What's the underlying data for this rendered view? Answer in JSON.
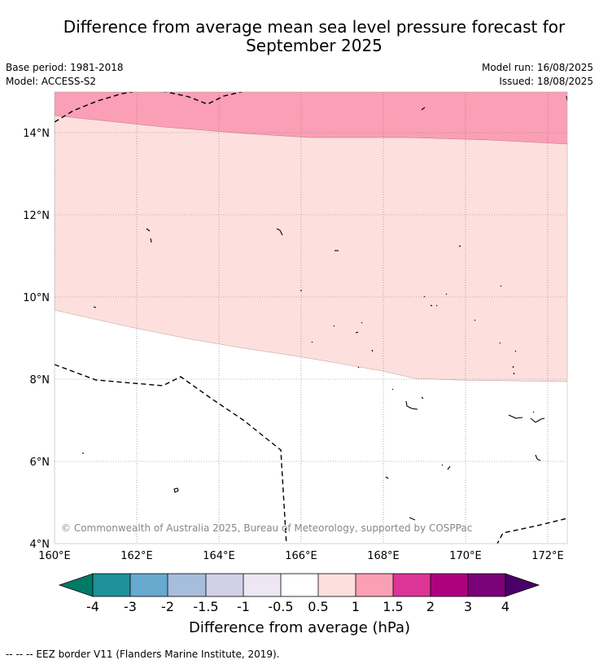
{
  "title_line1": "Difference from average mean sea level pressure forecast for",
  "title_line2": "September 2025",
  "base_period": "Base period: 1981-2018",
  "model": "Model: ACCESS-S2",
  "model_run": "Model run: 16/08/2025",
  "issued": "Issued: 18/08/2025",
  "copyright": "© Commonwealth of Australia 2025, Bureau of Meteorology, supported by COSPPac",
  "map": {
    "lon_range": [
      160,
      172.5
    ],
    "lat_range": [
      4,
      15.1
    ],
    "x_ticks": [
      "160°E",
      "162°E",
      "164°E",
      "166°E",
      "168°E",
      "170°E",
      "172°E"
    ],
    "y_ticks": [
      "4°N",
      "6°N",
      "8°N",
      "10°N",
      "12°N",
      "14°N"
    ]
  },
  "colorbar": {
    "title": "Difference from average (hPa)",
    "ticks": [
      "-4",
      "-3",
      "-2",
      "-1.5",
      "-1",
      "-0.5",
      "0.5",
      "1",
      "1.5",
      "2",
      "3",
      "4"
    ],
    "colors": [
      "#007a67",
      "#1d9099",
      "#67a9cf",
      "#a6bddb",
      "#d0d1e6",
      "#ece7f2",
      "#ffffff",
      "#fde0dd",
      "#fa9fb5",
      "#dd3497",
      "#ae017e",
      "#7a0177",
      "#49006a"
    ]
  },
  "footnote": "--  --  -- EEZ border V11 (Flanders Marine Institute, 2019)."
}
